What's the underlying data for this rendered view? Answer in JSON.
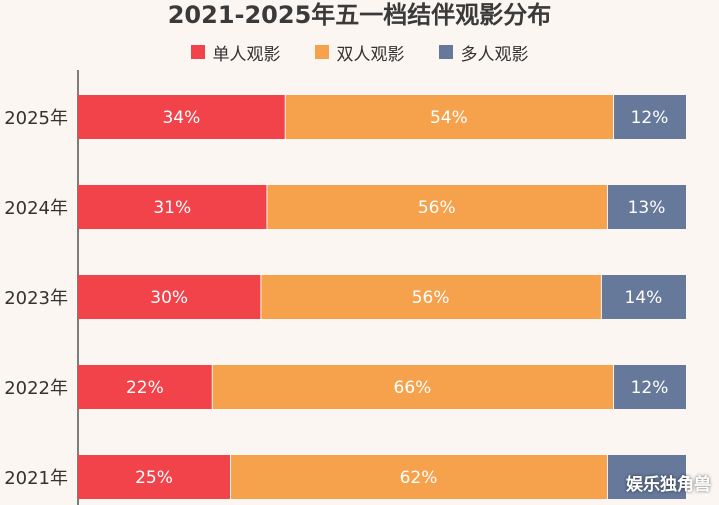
{
  "chart_data": {
    "type": "bar",
    "orientation": "horizontal",
    "stacked": true,
    "title": "2021-2025年五一档结伴观影分布",
    "categories": [
      "2025年",
      "2024年",
      "2023年",
      "2022年",
      "2021年"
    ],
    "series": [
      {
        "name": "单人观影",
        "color": "#f2434a",
        "values": [
          34,
          31,
          30,
          22,
          25
        ],
        "labels": [
          "34%",
          "31%",
          "30%",
          "22%",
          "25%"
        ]
      },
      {
        "name": "双人观影",
        "color": "#f6a24d",
        "values": [
          54,
          56,
          56,
          66,
          62
        ],
        "labels": [
          "54%",
          "56%",
          "56%",
          "66%",
          "62%"
        ]
      },
      {
        "name": "多人观影",
        "color": "#66799b",
        "values": [
          12,
          13,
          14,
          12,
          13
        ],
        "labels": [
          "12%",
          "13%",
          "14%",
          "12%",
          ""
        ]
      }
    ],
    "xlim": [
      0,
      100
    ],
    "legend_position": "top-center",
    "grid": false
  },
  "watermark": "娱乐独角兽"
}
